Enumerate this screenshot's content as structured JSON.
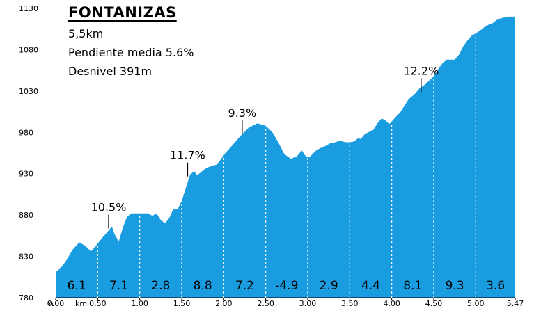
{
  "info": {
    "title": "FONTANIZAS",
    "distance": "5,5km",
    "slope": "Pendiente media 5.6%",
    "gain": "Desnivel 391m"
  },
  "chart_data": {
    "type": "area",
    "title": "FONTANIZAS",
    "xlabel": "",
    "ylabel": "",
    "x_unit_label": "m",
    "km_unit_label": "km",
    "xlim": [
      0,
      5.47
    ],
    "ylim": [
      780,
      1130
    ],
    "y_ticks": [
      780,
      830,
      880,
      930,
      980,
      1030,
      1080,
      1130
    ],
    "x_ticks": [
      {
        "value": 0.0,
        "label": "0.00"
      },
      {
        "value": 0.5,
        "label": "0.50"
      },
      {
        "value": 1.0,
        "label": "1.00"
      },
      {
        "value": 1.5,
        "label": "1.50"
      },
      {
        "value": 2.0,
        "label": "2.00"
      },
      {
        "value": 2.5,
        "label": "2.50"
      },
      {
        "value": 3.0,
        "label": "3.00"
      },
      {
        "value": 3.5,
        "label": "3.50"
      },
      {
        "value": 4.0,
        "label": "4.00"
      },
      {
        "value": 4.5,
        "label": "4.50"
      },
      {
        "value": 5.0,
        "label": "5.00"
      },
      {
        "value": 5.47,
        "label": "5.47"
      }
    ],
    "fill_color": "#1a9de0",
    "grid": false,
    "profile": {
      "x": [
        0.0,
        0.05,
        0.12,
        0.2,
        0.28,
        0.35,
        0.42,
        0.48,
        0.55,
        0.62,
        0.67,
        0.7,
        0.75,
        0.8,
        0.85,
        0.9,
        0.95,
        1.0,
        1.05,
        1.1,
        1.15,
        1.2,
        1.25,
        1.3,
        1.35,
        1.4,
        1.45,
        1.5,
        1.55,
        1.6,
        1.65,
        1.68,
        1.72,
        1.78,
        1.82,
        1.88,
        1.92,
        1.97,
        2.02,
        2.1,
        2.15,
        2.22,
        2.3,
        2.4,
        2.5,
        2.58,
        2.65,
        2.72,
        2.8,
        2.87,
        2.93,
        2.97,
        3.0,
        3.03,
        3.07,
        3.1,
        3.15,
        3.2,
        3.27,
        3.33,
        3.38,
        3.45,
        3.5,
        3.55,
        3.6,
        3.63,
        3.68,
        3.72,
        3.78,
        3.83,
        3.88,
        3.93,
        3.97,
        4.0,
        4.05,
        4.1,
        4.15,
        4.2,
        4.27,
        4.33,
        4.4,
        4.5,
        4.55,
        4.6,
        4.65,
        4.7,
        4.75,
        4.8,
        4.85,
        4.9,
        4.95,
        5.0,
        5.05,
        5.1,
        5.15,
        5.2,
        5.25,
        5.3,
        5.38,
        5.42,
        5.47
      ],
      "y": [
        811,
        815,
        824,
        838,
        847,
        843,
        836,
        843,
        852,
        860,
        866,
        857,
        848,
        865,
        878,
        882,
        882,
        882,
        882,
        882,
        879,
        882,
        874,
        870,
        876,
        887,
        887,
        897,
        913,
        929,
        933,
        928,
        931,
        936,
        938,
        940,
        941,
        948,
        955,
        964,
        970,
        978,
        986,
        991,
        988,
        980,
        968,
        954,
        948,
        951,
        958,
        952,
        950,
        951,
        955,
        958,
        961,
        963,
        967,
        968,
        970,
        968,
        968,
        969,
        973,
        972,
        978,
        980,
        983,
        991,
        997,
        994,
        990,
        993,
        999,
        1004,
        1012,
        1020,
        1026,
        1033,
        1038,
        1048,
        1056,
        1063,
        1068,
        1068,
        1068,
        1074,
        1084,
        1091,
        1097,
        1100,
        1103,
        1107,
        1110,
        1112,
        1116,
        1118,
        1120,
        1120,
        1120
      ]
    },
    "segments": [
      {
        "x_mid": 0.25,
        "label": "6.1"
      },
      {
        "x_mid": 0.75,
        "label": "7.1"
      },
      {
        "x_mid": 1.25,
        "label": "2.8"
      },
      {
        "x_mid": 1.75,
        "label": "8.8"
      },
      {
        "x_mid": 2.25,
        "label": "7.2"
      },
      {
        "x_mid": 2.75,
        "label": "-4.9"
      },
      {
        "x_mid": 3.25,
        "label": "2.9"
      },
      {
        "x_mid": 3.75,
        "label": "4.4"
      },
      {
        "x_mid": 4.25,
        "label": "8.1"
      },
      {
        "x_mid": 4.75,
        "label": "9.3"
      },
      {
        "x_mid": 5.235,
        "label": "3.6"
      }
    ],
    "annotations": [
      {
        "label": "10.5%",
        "x": 0.63,
        "y": 862
      },
      {
        "label": "11.7%",
        "x": 1.57,
        "y": 925
      },
      {
        "label": "9.3%",
        "x": 2.22,
        "y": 976
      },
      {
        "label": "12.2%",
        "x": 4.35,
        "y": 1027
      }
    ]
  }
}
